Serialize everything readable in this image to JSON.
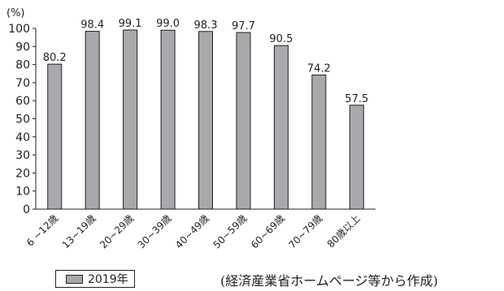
{
  "chart_data": {
    "type": "bar",
    "unit_label": "(%)",
    "categories": [
      "6 ~12歳",
      "13~19歳",
      "20~29歳",
      "30~39歳",
      "40~49歳",
      "50~59歳",
      "60~69歳",
      "70~79歳",
      "80歳以上"
    ],
    "series": [
      {
        "name": "2019年",
        "values": [
          80.2,
          98.4,
          99.1,
          99.0,
          98.3,
          97.7,
          90.5,
          74.2,
          57.5
        ]
      }
    ],
    "value_labels": [
      "80.2",
      "98.4",
      "99.1",
      "99.0",
      "98.3",
      "97.7",
      "90.5",
      "74.2",
      "57.5"
    ],
    "yticks": [
      "0",
      "10",
      "20",
      "30",
      "40",
      "50",
      "60",
      "70",
      "80",
      "90",
      "100"
    ],
    "ylim": [
      0,
      100
    ],
    "grid": false,
    "legend_position": "bottom-left",
    "bar_color": "#a7a9ac",
    "edge_color": "#231f20"
  },
  "legend": {
    "label": "2019年"
  },
  "source_note": "(経済産業省ホームページ等から作成)"
}
